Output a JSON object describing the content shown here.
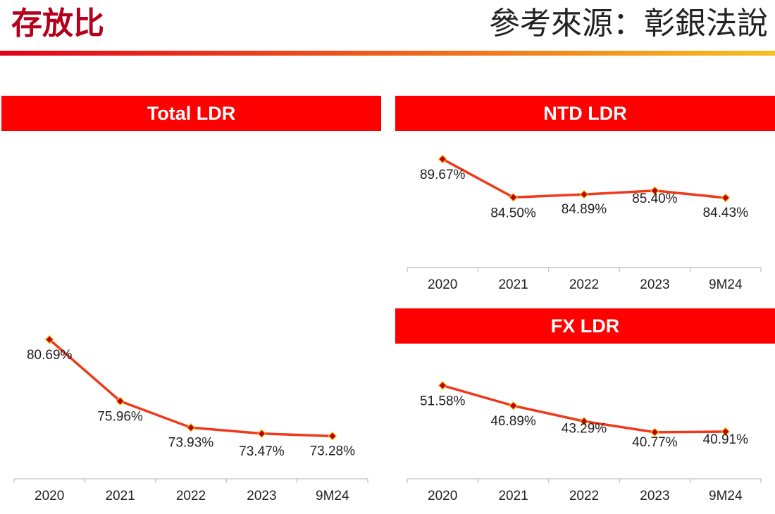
{
  "header": {
    "title": "存放比",
    "source": "參考來源：彰銀法說"
  },
  "colors": {
    "brand_red": "#b3001b",
    "panel_red": "#ff0000",
    "line": "#f0391a",
    "marker_fill": "#c0001a",
    "marker_stroke": "#f5c400",
    "rule_start": "#e3001b",
    "rule_end": "#f5c022",
    "axis": "#b0b0b0",
    "text": "#222222"
  },
  "chart_data": [
    {
      "type": "line",
      "title": "Total LDR",
      "categories": [
        "2020",
        "2021",
        "2022",
        "2023",
        "9M24"
      ],
      "values": [
        80.69,
        75.96,
        73.93,
        73.47,
        73.28
      ],
      "labels": [
        "80.69%",
        "75.96%",
        "73.93%",
        "73.47%",
        "73.28%"
      ],
      "ylim": [
        70,
        90
      ],
      "xlabel": "",
      "ylabel": "",
      "grid": false,
      "legend": "none"
    },
    {
      "type": "line",
      "title": "NTD LDR",
      "categories": [
        "2020",
        "2021",
        "2022",
        "2023",
        "9M24"
      ],
      "values": [
        89.67,
        84.5,
        84.89,
        85.4,
        84.43
      ],
      "labels": [
        "89.67%",
        "84.50%",
        "84.89%",
        "85.40%",
        "84.43%"
      ],
      "ylim": [
        75,
        91
      ],
      "xlabel": "",
      "ylabel": "",
      "grid": false,
      "legend": "none"
    },
    {
      "type": "line",
      "title": "FX LDR",
      "categories": [
        "2020",
        "2021",
        "2022",
        "2023",
        "9M24"
      ],
      "values": [
        51.58,
        46.89,
        43.29,
        40.77,
        40.91
      ],
      "labels": [
        "51.58%",
        "46.89%",
        "43.29%",
        "40.77%",
        "40.91%"
      ],
      "ylim": [
        30,
        58
      ],
      "xlabel": "",
      "ylabel": "",
      "grid": false,
      "legend": "none"
    }
  ]
}
